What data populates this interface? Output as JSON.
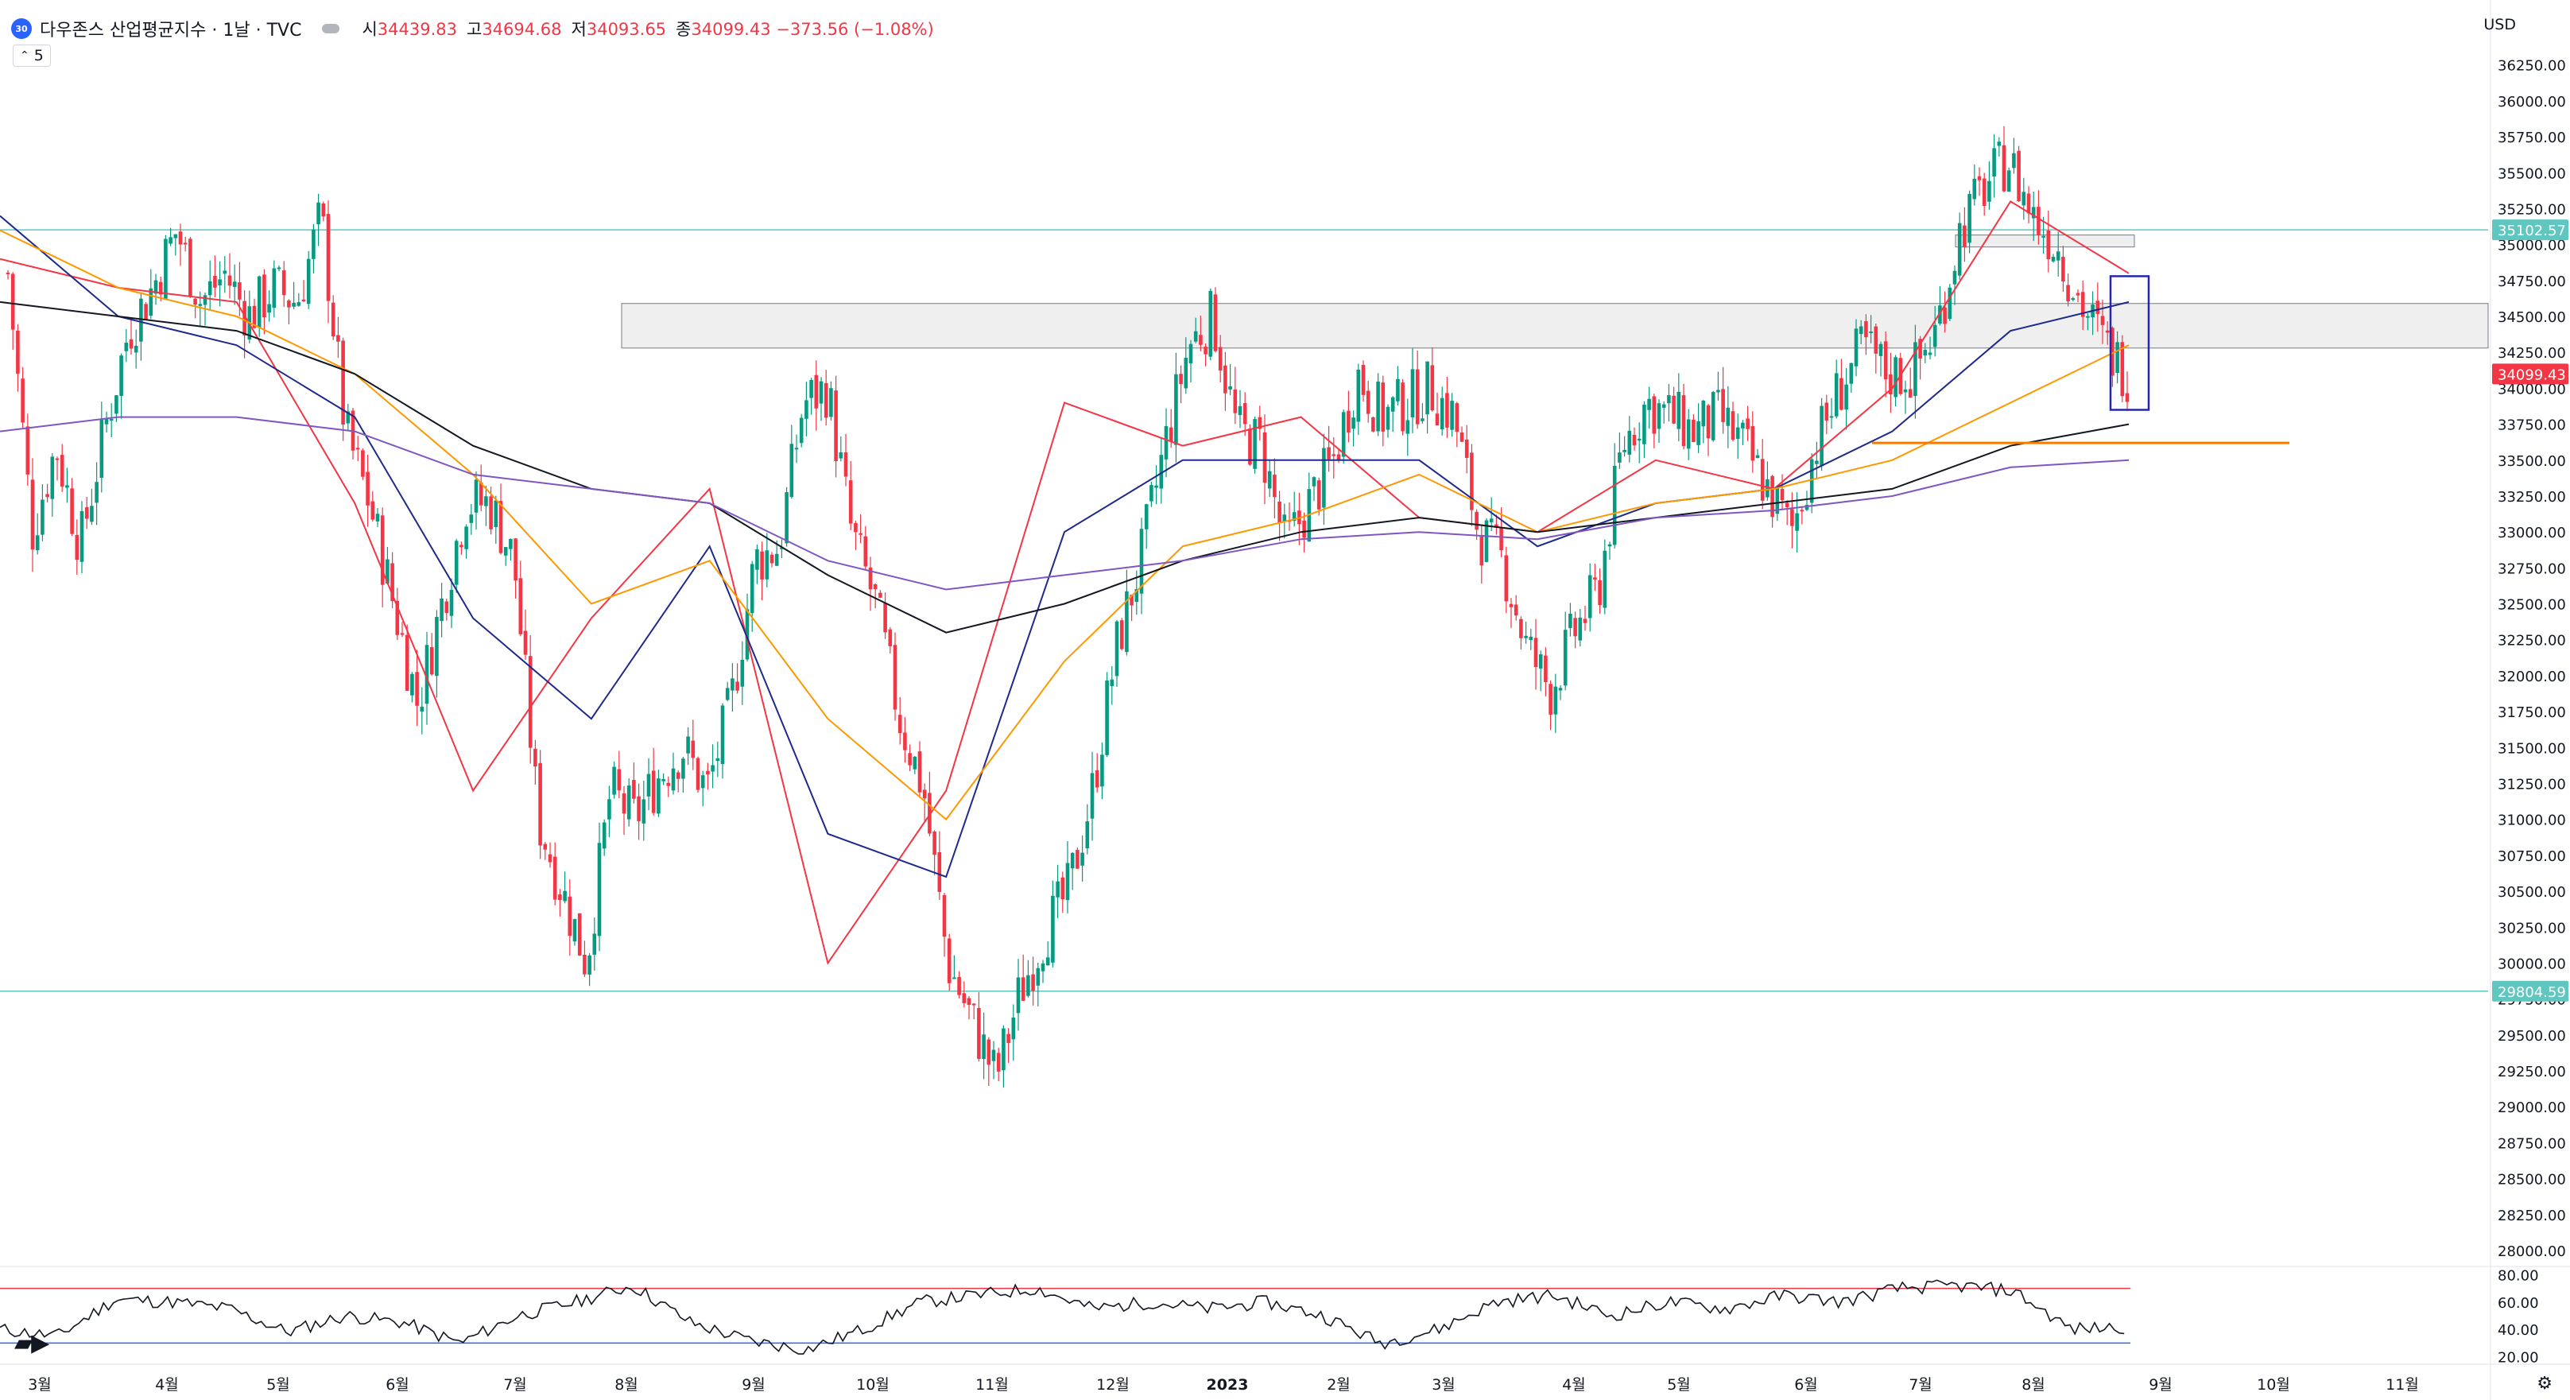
{
  "header": {
    "symbol_badge": "30",
    "title": "다우존스 산업평균지수 · 1날 · TVC",
    "ohlc": [
      {
        "label": "시",
        "value": "34439.83"
      },
      {
        "label": "고",
        "value": "34694.68"
      },
      {
        "label": "저",
        "value": "34093.65"
      },
      {
        "label": "종",
        "value": "34099.43 −373.56 (−1.08%)"
      }
    ],
    "interval": "5",
    "currency": "USD"
  },
  "colors": {
    "up": "#089981",
    "down": "#f23645",
    "ma20": "#f23645",
    "ma50": "#1e2a8c",
    "ma100": "#ff9800",
    "ma200": "#131722",
    "ma300": "#7e57c2",
    "hline": "#5fc6c0",
    "support": "#f57c00"
  },
  "icons": {
    "gear": "gear-icon",
    "logo": "tradingview-logo"
  },
  "chart_data": [
    {
      "type": "candlestick",
      "x_ticks": [
        "3월",
        "4월",
        "5월",
        "6월",
        "7월",
        "8월",
        "9월",
        "10월",
        "11월",
        "12월",
        "2023",
        "2월",
        "3월",
        "4월",
        "5월",
        "6월",
        "7월",
        "8월",
        "9월",
        "10월",
        "11월"
      ],
      "y_ticks": [
        "36250.00",
        "36000.00",
        "35750.00",
        "35500.00",
        "35250.00",
        "35000.00",
        "34750.00",
        "34500.00",
        "34250.00",
        "34000.00",
        "33750.00",
        "33500.00",
        "33250.00",
        "33000.00",
        "32750.00",
        "32500.00",
        "32250.00",
        "32000.00",
        "31750.00",
        "31500.00",
        "31250.00",
        "31000.00",
        "30750.00",
        "30500.00",
        "30250.00",
        "30000.00",
        "29750.00",
        "29500.00",
        "29250.00",
        "29000.00",
        "28750.00",
        "28500.00",
        "28250.00",
        "28000.00"
      ],
      "ylim": [
        27950,
        36370
      ],
      "price_labels": [
        {
          "value": 35102.57,
          "text": "35102.57",
          "color": "#5fc6c0"
        },
        {
          "value": 34099.43,
          "text": "34099.43",
          "color": "#f23645"
        },
        {
          "value": 29804.59,
          "text": "29804.59",
          "color": "#5fc6c0"
        }
      ],
      "horizontal_lines": [
        35102.57,
        29804.59
      ],
      "resistance_zone": [
        34280,
        34590
      ],
      "small_zone": [
        35000,
        35050
      ],
      "support_line": 33620,
      "anchors": [
        [
          "3월",
          34800
        ],
        [
          "3월",
          33000
        ],
        [
          "3월",
          33600
        ],
        [
          "3월",
          32900
        ],
        [
          "3월",
          33700
        ],
        [
          "3월",
          34400
        ],
        [
          "3월",
          34700
        ],
        [
          "4월",
          35100
        ],
        [
          "4월",
          34600
        ],
        [
          "4월",
          34800
        ],
        [
          "4월",
          34500
        ],
        [
          "4월",
          34700
        ],
        [
          "4월",
          34600
        ],
        [
          "5월",
          35200
        ],
        [
          "5월",
          33700
        ],
        [
          "5월",
          33200
        ],
        [
          "5월",
          32500
        ],
        [
          "5월",
          31800
        ],
        [
          "5월",
          32500
        ],
        [
          "6월",
          33200
        ],
        [
          "6월",
          33200
        ],
        [
          "6월",
          32800
        ],
        [
          "6월",
          31000
        ],
        [
          "6월",
          30500
        ],
        [
          "6월",
          30000
        ],
        [
          "7월",
          31200
        ],
        [
          "7월",
          31000
        ],
        [
          "7월",
          31300
        ],
        [
          "7월",
          31500
        ],
        [
          "7월",
          31200
        ],
        [
          "7월",
          31800
        ],
        [
          "8월",
          32800
        ],
        [
          "8월",
          32900
        ],
        [
          "8월",
          33900
        ],
        [
          "8월",
          34000
        ],
        [
          "9월",
          33000
        ],
        [
          "9월",
          32500
        ],
        [
          "9월",
          31700
        ],
        [
          "9월",
          31200
        ],
        [
          "9월",
          30000
        ],
        [
          "9월",
          29600
        ],
        [
          "10월",
          29200
        ],
        [
          "10월",
          29800
        ],
        [
          "10월",
          30200
        ],
        [
          "10월",
          30500
        ],
        [
          "10월",
          31200
        ],
        [
          "11월",
          32200
        ],
        [
          "11월",
          32800
        ],
        [
          "11월",
          33600
        ],
        [
          "12월",
          34300
        ],
        [
          "12월",
          34500
        ],
        [
          "12월",
          33700
        ],
        [
          "12월",
          33600
        ],
        [
          "12월",
          32900
        ],
        [
          "12월",
          33200
        ],
        [
          "2023",
          33500
        ],
        [
          "2023",
          34100
        ],
        [
          "2023",
          33800
        ],
        [
          "2023",
          33900
        ],
        [
          "2월",
          34000
        ],
        [
          "2월",
          33800
        ],
        [
          "2월",
          33000
        ],
        [
          "2월",
          32800
        ],
        [
          "3월",
          32200
        ],
        [
          "3월",
          31900
        ],
        [
          "3월",
          32300
        ],
        [
          "3월",
          32600
        ],
        [
          "4월",
          33600
        ],
        [
          "4월",
          33900
        ],
        [
          "4월",
          33800
        ],
        [
          "4월",
          33700
        ],
        [
          "5월",
          33800
        ],
        [
          "5월",
          33600
        ],
        [
          "5월",
          33300
        ],
        [
          "5월",
          33000
        ],
        [
          "6월",
          33600
        ],
        [
          "6월",
          34000
        ],
        [
          "6월",
          34300
        ],
        [
          "6월",
          34100
        ],
        [
          "7월",
          34100
        ],
        [
          "7월",
          34400
        ],
        [
          "7월",
          35100
        ],
        [
          "7월",
          35400
        ],
        [
          "8월",
          35600
        ],
        [
          "8월",
          35200
        ],
        [
          "8월",
          35000
        ],
        [
          "8월",
          34600
        ],
        [
          "8월",
          34300
        ],
        [
          "8월",
          34099
        ]
      ],
      "series": [
        {
          "name": "",
          "values": [
            [
              "3월",
              34900
            ],
            [
              "4월",
              34700
            ],
            [
              "5월",
              34600
            ],
            [
              "6월",
              33200
            ],
            [
              "7월",
              31200
            ],
            [
              "8월",
              32400
            ],
            [
              "9월",
              33300
            ],
            [
              "10월",
              30000
            ],
            [
              "11월",
              31200
            ],
            [
              "12월",
              33900
            ],
            [
              "2023",
              33600
            ],
            [
              "2월",
              33800
            ],
            [
              "3월",
              33100
            ],
            [
              "4월",
              33000
            ],
            [
              "5월",
              33500
            ],
            [
              "6월",
              33300
            ],
            [
              "7월",
              34000
            ],
            [
              "8월",
              35300
            ],
            [
              "8월",
              34800
            ]
          ]
        },
        {
          "name": "",
          "values": [
            [
              "3월",
              35200
            ],
            [
              "4월",
              34500
            ],
            [
              "5월",
              34300
            ],
            [
              "6월",
              33800
            ],
            [
              "7월",
              32400
            ],
            [
              "8월",
              31700
            ],
            [
              "9월",
              32900
            ],
            [
              "10월",
              30900
            ],
            [
              "11월",
              30600
            ],
            [
              "12월",
              33000
            ],
            [
              "2023",
              33500
            ],
            [
              "2월",
              33500
            ],
            [
              "3월",
              33500
            ],
            [
              "4월",
              32900
            ],
            [
              "5월",
              33200
            ],
            [
              "6월",
              33300
            ],
            [
              "7월",
              33700
            ],
            [
              "8월",
              34400
            ],
            [
              "8월",
              34600
            ]
          ]
        },
        {
          "name": "",
          "values": [
            [
              "3월",
              35100
            ],
            [
              "4월",
              34700
            ],
            [
              "5월",
              34500
            ],
            [
              "6월",
              34100
            ],
            [
              "7월",
              33400
            ],
            [
              "8월",
              32500
            ],
            [
              "9월",
              32800
            ],
            [
              "10월",
              31700
            ],
            [
              "11월",
              31000
            ],
            [
              "12월",
              32100
            ],
            [
              "2023",
              32900
            ],
            [
              "2월",
              33100
            ],
            [
              "3월",
              33400
            ],
            [
              "4월",
              33000
            ],
            [
              "5월",
              33200
            ],
            [
              "6월",
              33300
            ],
            [
              "7월",
              33500
            ],
            [
              "8월",
              33900
            ],
            [
              "8월",
              34300
            ]
          ]
        },
        {
          "name": "",
          "values": [
            [
              "3월",
              34600
            ],
            [
              "4월",
              34500
            ],
            [
              "5월",
              34400
            ],
            [
              "6월",
              34100
            ],
            [
              "7월",
              33600
            ],
            [
              "8월",
              33300
            ],
            [
              "9월",
              33200
            ],
            [
              "10월",
              32700
            ],
            [
              "11월",
              32300
            ],
            [
              "12월",
              32500
            ],
            [
              "2023",
              32800
            ],
            [
              "2월",
              33000
            ],
            [
              "3월",
              33100
            ],
            [
              "4월",
              33000
            ],
            [
              "5월",
              33100
            ],
            [
              "6월",
              33200
            ],
            [
              "7월",
              33300
            ],
            [
              "8월",
              33600
            ],
            [
              "8월",
              33750
            ]
          ]
        },
        {
          "name": "",
          "values": [
            [
              "3월",
              33700
            ],
            [
              "4월",
              33800
            ],
            [
              "5월",
              33800
            ],
            [
              "6월",
              33700
            ],
            [
              "7월",
              33400
            ],
            [
              "8월",
              33300
            ],
            [
              "9월",
              33200
            ],
            [
              "10월",
              32800
            ],
            [
              "11월",
              32600
            ],
            [
              "12월",
              32700
            ],
            [
              "2023",
              32800
            ],
            [
              "2월",
              32950
            ],
            [
              "3월",
              33000
            ],
            [
              "4월",
              32950
            ],
            [
              "5월",
              33100
            ],
            [
              "6월",
              33150
            ],
            [
              "7월",
              33250
            ],
            [
              "8월",
              33450
            ],
            [
              "8월",
              33500
            ]
          ]
        }
      ]
    },
    {
      "type": "line",
      "y_ticks": [
        "80.00",
        "60.00",
        "40.00",
        "20.00"
      ],
      "ylim": [
        18,
        82
      ],
      "upper_line": 70,
      "lower_line": 30,
      "values": [
        [
          "3월",
          40
        ],
        [
          "3월",
          35
        ],
        [
          "4월",
          62
        ],
        [
          "4월",
          60
        ],
        [
          "5월",
          55
        ],
        [
          "5월",
          38
        ],
        [
          "6월",
          50
        ],
        [
          "6월",
          45
        ],
        [
          "7월",
          30
        ],
        [
          "7월",
          50
        ],
        [
          "8월",
          60
        ],
        [
          "8월",
          72
        ],
        [
          "9월",
          45
        ],
        [
          "9월",
          32
        ],
        [
          "10월",
          25
        ],
        [
          "10월",
          40
        ],
        [
          "11월",
          60
        ],
        [
          "11월",
          65
        ],
        [
          "12월",
          70
        ],
        [
          "12월",
          55
        ],
        [
          "2023",
          60
        ],
        [
          "2023",
          55
        ],
        [
          "2월",
          60
        ],
        [
          "2월",
          50
        ],
        [
          "3월",
          30
        ],
        [
          "3월",
          40
        ],
        [
          "4월",
          60
        ],
        [
          "4월",
          65
        ],
        [
          "5월",
          50
        ],
        [
          "5월",
          60
        ],
        [
          "6월",
          55
        ],
        [
          "6월",
          65
        ],
        [
          "7월",
          60
        ],
        [
          "7월",
          70
        ],
        [
          "8월",
          72
        ],
        [
          "8월",
          68
        ],
        [
          "8월",
          40
        ],
        [
          "8월",
          42
        ]
      ]
    }
  ]
}
